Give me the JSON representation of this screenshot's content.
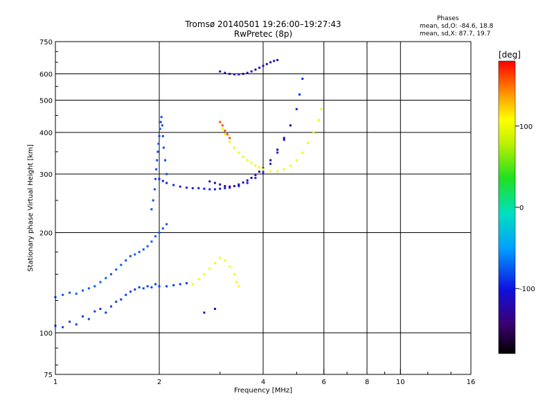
{
  "header": {
    "title_line1": "Tromsø 20140501 19:26:00–19:27:43",
    "title_line2": "RwPretec (8p)",
    "stats_heading": "Phases",
    "stats_o": "mean, sd,O: -84.6, 18.8",
    "stats_x": "mean, sd,X:  87.7, 19.7"
  },
  "colorbar": {
    "unit_label": "[deg]",
    "ticks": [
      "100",
      "0",
      "-100"
    ],
    "range": [
      -180,
      180
    ],
    "tick_values": [
      100,
      0,
      -100
    ]
  },
  "chart_data": {
    "type": "scatter",
    "xlabel": "Frequency [MHz]",
    "ylabel": "Stationary phase Virtual Height [km]",
    "x_scale": "log",
    "y_scale": "log",
    "xlim": [
      1,
      16
    ],
    "ylim": [
      75,
      750
    ],
    "x_ticks": [
      "1",
      "2",
      "4",
      "6",
      "8",
      "10",
      "16"
    ],
    "x_tick_values": [
      1,
      2,
      4,
      6,
      8,
      10,
      16
    ],
    "y_ticks": [
      "750",
      "600",
      "500",
      "400",
      "300",
      "200",
      "100",
      "75"
    ],
    "y_tick_values": [
      750,
      600,
      500,
      400,
      300,
      200,
      100,
      75
    ],
    "grid_x": [
      2,
      4,
      6,
      8,
      10
    ],
    "grid_y": [
      100,
      200,
      300,
      400,
      500,
      600
    ],
    "traces": [
      {
        "name": "",
        "phase": -85,
        "points": [
          [
            1.0,
            105
          ],
          [
            1.05,
            104
          ],
          [
            1.1,
            108
          ],
          [
            1.15,
            106
          ],
          [
            1.2,
            112
          ],
          [
            1.25,
            110
          ],
          [
            1.3,
            116
          ],
          [
            1.35,
            118
          ],
          [
            1.4,
            115
          ],
          [
            1.45,
            120
          ],
          [
            1.5,
            124
          ],
          [
            1.55,
            126
          ],
          [
            1.6,
            130
          ],
          [
            1.65,
            133
          ],
          [
            1.7,
            135
          ],
          [
            1.75,
            137
          ],
          [
            1.8,
            136
          ],
          [
            1.85,
            138
          ],
          [
            1.9,
            137
          ],
          [
            1.95,
            140
          ],
          [
            2.0,
            138
          ],
          [
            2.1,
            138
          ],
          [
            2.2,
            139
          ],
          [
            2.3,
            140
          ],
          [
            2.4,
            141
          ]
        ]
      },
      {
        "name": "",
        "phase": -75,
        "points": [
          [
            1.0,
            128
          ],
          [
            1.05,
            130
          ],
          [
            1.1,
            132
          ],
          [
            1.15,
            131
          ],
          [
            1.2,
            134
          ],
          [
            1.25,
            136
          ],
          [
            1.3,
            138
          ],
          [
            1.35,
            142
          ],
          [
            1.4,
            146
          ],
          [
            1.45,
            150
          ],
          [
            1.5,
            155
          ],
          [
            1.55,
            160
          ],
          [
            1.6,
            165
          ],
          [
            1.65,
            170
          ],
          [
            1.7,
            172
          ],
          [
            1.75,
            175
          ],
          [
            1.8,
            178
          ],
          [
            1.85,
            182
          ],
          [
            1.9,
            188
          ],
          [
            1.95,
            195
          ],
          [
            2.0,
            200
          ],
          [
            2.05,
            206
          ],
          [
            2.1,
            212
          ]
        ]
      },
      {
        "name": "",
        "phase": -80,
        "points": [
          [
            1.9,
            235
          ],
          [
            1.92,
            250
          ],
          [
            1.94,
            270
          ],
          [
            1.95,
            290
          ],
          [
            1.96,
            310
          ],
          [
            1.97,
            330
          ],
          [
            1.98,
            350
          ],
          [
            1.99,
            370
          ],
          [
            2.0,
            390
          ],
          [
            2.01,
            410
          ],
          [
            2.02,
            430
          ],
          [
            2.03,
            445
          ],
          [
            2.04,
            420
          ],
          [
            2.05,
            390
          ],
          [
            2.06,
            360
          ],
          [
            2.08,
            330
          ],
          [
            2.1,
            300
          ]
        ]
      },
      {
        "name": "",
        "phase": -95,
        "points": [
          [
            2.0,
            290
          ],
          [
            2.05,
            286
          ],
          [
            2.1,
            282
          ],
          [
            2.2,
            278
          ],
          [
            2.3,
            275
          ],
          [
            2.4,
            273
          ],
          [
            2.5,
            272
          ],
          [
            2.6,
            272
          ],
          [
            2.7,
            271
          ],
          [
            2.8,
            270
          ],
          [
            2.9,
            270
          ],
          [
            3.0,
            271
          ],
          [
            3.1,
            272
          ],
          [
            3.2,
            273
          ],
          [
            3.4,
            276
          ],
          [
            3.6,
            282
          ],
          [
            3.8,
            292
          ],
          [
            4.0,
            304
          ],
          [
            4.2,
            322
          ],
          [
            4.4,
            348
          ],
          [
            4.6,
            380
          ],
          [
            4.8,
            420
          ],
          [
            5.0,
            470
          ],
          [
            5.1,
            520
          ],
          [
            5.2,
            580
          ]
        ]
      },
      {
        "name": "",
        "phase": -120,
        "points": [
          [
            3.0,
            610
          ],
          [
            3.1,
            604
          ],
          [
            3.2,
            600
          ],
          [
            3.3,
            598
          ],
          [
            3.4,
            598
          ],
          [
            3.5,
            600
          ],
          [
            3.6,
            604
          ],
          [
            3.7,
            610
          ],
          [
            3.8,
            618
          ],
          [
            3.9,
            626
          ],
          [
            4.0,
            634
          ],
          [
            4.1,
            642
          ],
          [
            4.2,
            650
          ],
          [
            4.3,
            656
          ],
          [
            4.4,
            660
          ]
        ]
      },
      {
        "name": "",
        "phase": -130,
        "points": [
          [
            2.8,
            285
          ],
          [
            2.9,
            282
          ],
          [
            3.0,
            279
          ],
          [
            3.1,
            276
          ],
          [
            3.2,
            275
          ],
          [
            3.3,
            276
          ],
          [
            3.4,
            279
          ],
          [
            3.5,
            283
          ],
          [
            3.6,
            287
          ],
          [
            3.7,
            292
          ],
          [
            3.8,
            298
          ],
          [
            3.9,
            305
          ],
          [
            4.0,
            312
          ],
          [
            4.2,
            330
          ],
          [
            4.4,
            355
          ],
          [
            4.6,
            385
          ],
          [
            4.8,
            420
          ]
        ]
      },
      {
        "name": "",
        "phase": 100,
        "points": [
          [
            3.0,
            430
          ],
          [
            3.05,
            410
          ],
          [
            3.1,
            395
          ],
          [
            3.2,
            375
          ],
          [
            3.3,
            360
          ],
          [
            3.4,
            348
          ],
          [
            3.5,
            338
          ],
          [
            3.6,
            330
          ],
          [
            3.7,
            324
          ],
          [
            3.8,
            318
          ],
          [
            3.9,
            314
          ],
          [
            4.0,
            310
          ],
          [
            4.2,
            306
          ],
          [
            4.4,
            306
          ],
          [
            4.6,
            310
          ],
          [
            4.8,
            318
          ],
          [
            5.0,
            330
          ],
          [
            5.2,
            348
          ],
          [
            5.4,
            372
          ],
          [
            5.6,
            400
          ],
          [
            5.8,
            436
          ],
          [
            5.9,
            470
          ]
        ]
      },
      {
        "name": "",
        "phase": 160,
        "points": [
          [
            3.0,
            430
          ],
          [
            3.05,
            420
          ],
          [
            3.1,
            405
          ],
          [
            3.15,
            395
          ],
          [
            3.2,
            385
          ]
        ]
      },
      {
        "name": "",
        "phase": 110,
        "points": [
          [
            2.5,
            140
          ],
          [
            2.6,
            145
          ],
          [
            2.7,
            150
          ],
          [
            2.8,
            156
          ],
          [
            2.9,
            162
          ],
          [
            3.0,
            168
          ],
          [
            3.1,
            165
          ],
          [
            3.2,
            158
          ],
          [
            3.3,
            150
          ],
          [
            3.35,
            142
          ],
          [
            3.4,
            138
          ]
        ]
      },
      {
        "name": "",
        "phase": -110,
        "points": [
          [
            2.7,
            115
          ],
          [
            2.9,
            118
          ]
        ]
      }
    ],
    "colorbar_label": "[deg]"
  }
}
